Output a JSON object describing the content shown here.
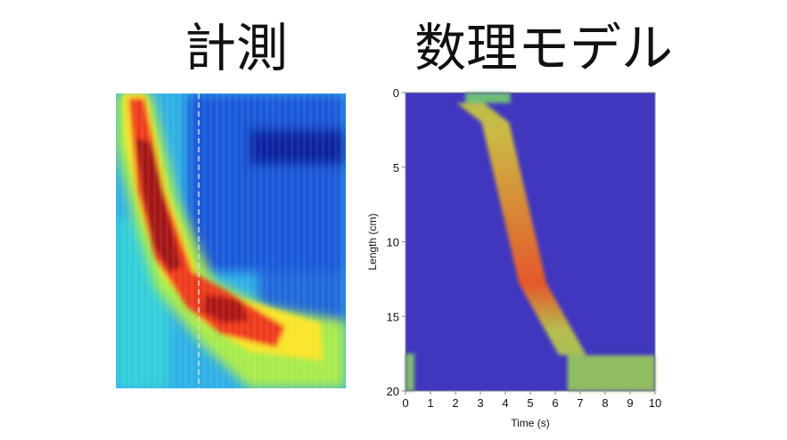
{
  "titles": {
    "left": "計測",
    "right": "数理モデル"
  },
  "colors": {
    "background": "#ffffff",
    "model_background": "#4137bf",
    "axis": "#888888"
  },
  "chart_data": [
    {
      "type": "heatmap",
      "title": "計測",
      "xlabel": "",
      "ylabel": "",
      "colormap": "jet",
      "description_free": true,
      "band": {
        "peak_path": [
          [
            0.08,
            0.0
          ],
          [
            0.1,
            0.12
          ],
          [
            0.14,
            0.3
          ],
          [
            0.2,
            0.5
          ],
          [
            0.28,
            0.63
          ],
          [
            0.45,
            0.74
          ],
          [
            0.62,
            0.85
          ],
          [
            0.7,
            0.93
          ]
        ]
      }
    },
    {
      "type": "heatmap",
      "title": "数理モデル",
      "xlabel": "Time (s)",
      "ylabel": "Length (cm)",
      "xlim": [
        0,
        10
      ],
      "ylim": [
        20,
        0
      ],
      "xticks": [
        "0",
        "1",
        "2",
        "3",
        "4",
        "5",
        "6",
        "7",
        "8",
        "9",
        "10"
      ],
      "yticks": [
        "0",
        "5",
        "10",
        "15",
        "20"
      ],
      "grid": false,
      "band_path": [
        [
          2.6,
          0.7
        ],
        [
          3.6,
          2.0
        ],
        [
          5.1,
          12.8
        ],
        [
          6.7,
          17.6
        ],
        [
          10.0,
          17.6
        ]
      ],
      "band_intensity": [
        0.55,
        0.62,
        0.95,
        0.55,
        0.45
      ]
    }
  ]
}
